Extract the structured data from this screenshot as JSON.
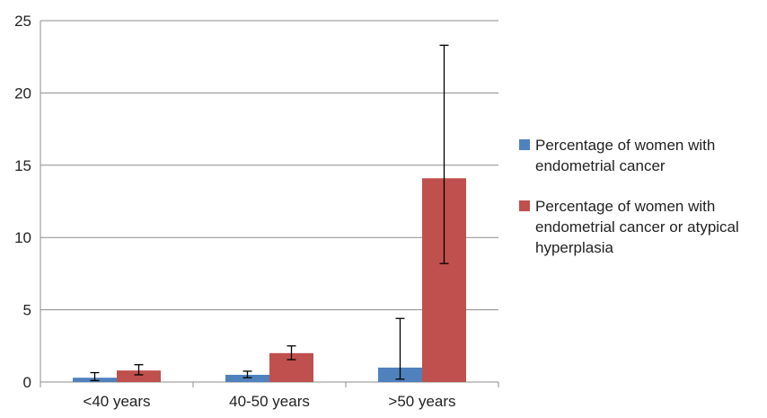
{
  "chart_data": {
    "type": "bar",
    "categories": [
      "<40 years",
      "40-50 years",
      ">50 years"
    ],
    "series": [
      {
        "name": "Percentage of women with endometrial cancer",
        "color": "#4F81BD",
        "values": [
          0.3,
          0.5,
          1.0
        ],
        "error_low": [
          0.1,
          0.3,
          0.2
        ],
        "error_high": [
          0.65,
          0.75,
          4.4
        ]
      },
      {
        "name": "Percentage of women with endometrial cancer or atypical hyperplasia",
        "color": "#C0504D",
        "values": [
          0.8,
          2.0,
          14.1
        ],
        "error_low": [
          0.5,
          1.55,
          8.2
        ],
        "error_high": [
          1.2,
          2.5,
          23.3
        ]
      }
    ],
    "y_ticks": [
      "0",
      "5",
      "10",
      "15",
      "20",
      "25"
    ],
    "ylim": [
      0,
      25
    ],
    "grid": true,
    "legend_position": "right",
    "title": "",
    "xlabel": "",
    "ylabel": ""
  },
  "legend": {
    "items": [
      {
        "label": "Percentage of women with endometrial cancer",
        "color": "#4F81BD"
      },
      {
        "label": "Percentage of women with endometrial cancer or atypical hyperplasia",
        "color": "#C0504D"
      }
    ]
  }
}
